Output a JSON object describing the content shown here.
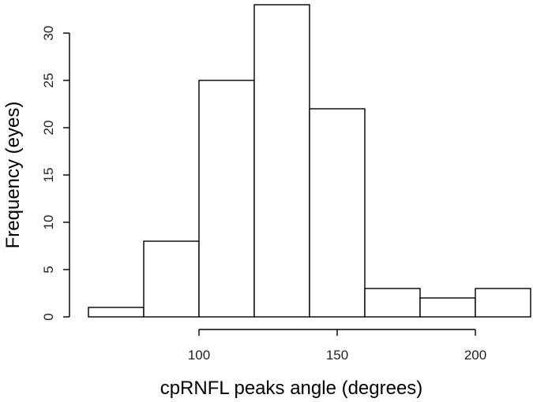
{
  "chart_data": {
    "type": "bar",
    "subtype": "histogram",
    "xlabel": "cpRNFL peaks angle (degrees)",
    "ylabel": "Frequency (eyes)",
    "bin_edges": [
      60,
      80,
      100,
      120,
      140,
      160,
      180,
      200,
      220
    ],
    "values": [
      1,
      8,
      25,
      33,
      22,
      3,
      2,
      3
    ],
    "x_ticks": [
      100,
      150,
      200
    ],
    "y_ticks": [
      0,
      5,
      10,
      15,
      20,
      25,
      30
    ],
    "xlim": [
      60,
      220
    ],
    "ylim": [
      0,
      33
    ],
    "grid": false,
    "colors": {
      "bar_fill": "#ffffff",
      "bar_stroke": "#000000"
    }
  }
}
